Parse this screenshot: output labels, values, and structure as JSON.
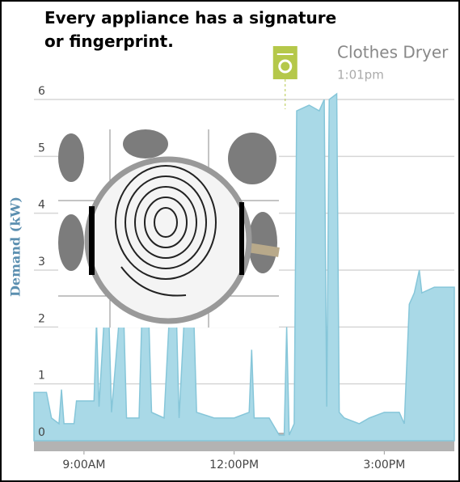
{
  "chart_data": {
    "type": "area",
    "title": "Every appliance has a signature or fingerprint.",
    "y_label": "Demand (kW)",
    "annotation": {
      "text": "Clothes Dryer",
      "time": "1:01pm",
      "x": 13.02
    },
    "x": [
      8.0,
      8.25,
      8.35,
      8.5,
      8.55,
      8.6,
      8.8,
      8.85,
      9.2,
      9.25,
      9.3,
      9.4,
      9.5,
      9.55,
      9.7,
      9.8,
      9.85,
      10.1,
      10.15,
      10.3,
      10.35,
      10.6,
      10.7,
      10.85,
      10.9,
      11.0,
      11.2,
      11.25,
      11.6,
      12.0,
      12.3,
      12.35,
      12.4,
      12.7,
      12.9,
      13.0,
      13.05,
      13.1,
      13.2,
      13.25,
      13.5,
      13.7,
      13.8,
      13.85,
      13.9,
      14.05,
      14.1,
      14.2,
      14.5,
      14.7,
      15.0,
      15.3,
      15.4,
      15.5,
      15.6,
      15.7,
      15.75,
      16.0,
      16.2,
      16.4
    ],
    "values": [
      0.85,
      0.85,
      0.4,
      0.3,
      0.9,
      0.3,
      0.3,
      0.7,
      0.7,
      2.1,
      0.6,
      2.1,
      2.1,
      0.5,
      2.1,
      2.0,
      0.4,
      0.4,
      2.0,
      2.0,
      0.5,
      0.4,
      2.1,
      2.1,
      0.4,
      2.1,
      2.0,
      0.5,
      0.4,
      0.4,
      0.5,
      1.6,
      0.4,
      0.4,
      0.1,
      0.1,
      2.0,
      0.1,
      0.3,
      5.8,
      5.9,
      5.8,
      6.0,
      0.6,
      6.0,
      6.1,
      0.5,
      0.4,
      0.3,
      0.4,
      0.5,
      0.5,
      0.3,
      2.4,
      2.6,
      3.0,
      2.6,
      2.7,
      2.7,
      2.7
    ],
    "color": "#a9d9e7",
    "xlim": [
      8.0,
      16.4
    ],
    "xticks": [
      {
        "value": 9,
        "label": "9:00AM"
      },
      {
        "value": 12,
        "label": "12:00PM"
      },
      {
        "value": 15,
        "label": "3:00PM"
      }
    ],
    "ylim": [
      0,
      6
    ],
    "yticks": [
      0,
      1,
      2,
      3,
      4,
      5,
      6
    ],
    "grid": true
  }
}
